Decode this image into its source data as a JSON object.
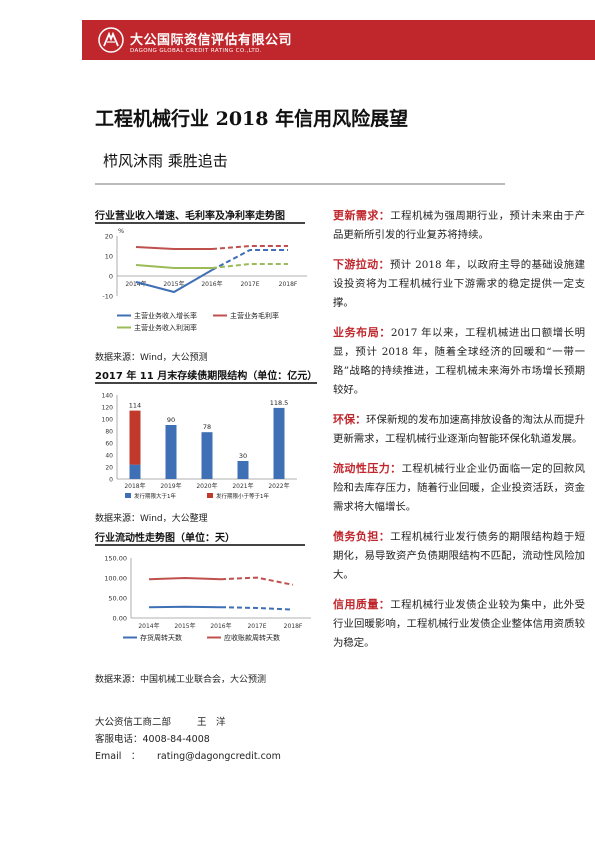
{
  "header": {
    "company": "大公国际资信评估有限公司",
    "company_en": "DAGONG GLOBAL CREDIT RATING CO.,LTD."
  },
  "title": "工程机械行业 2018 年信用风险展望",
  "subtitle": "栉风沐雨 乘胜追击",
  "charts_meta": {
    "chart1_title": "行业营业收入增速、毛利率及净利率走势图",
    "chart1_source": "数据来源：Wind，大公预测",
    "chart2_title": "2017 年 11 月末存续债期限结构（单位：亿元）",
    "chart2_source": "数据来源：Wind，大公整理",
    "chart3_title": "行业流动性走势图（单位：天）",
    "chart3_source": "数据来源：中国机械工业联合会，大公预测"
  },
  "chart_data": [
    {
      "type": "line",
      "title": "行业营业收入增速、毛利率及净利率走势图",
      "unit_label": "%",
      "categories": [
        "2014年",
        "2015年",
        "2016年",
        "2017E",
        "2018F"
      ],
      "yticks": [
        "20",
        "10",
        "0",
        "-10"
      ],
      "ylim": [
        -10,
        20
      ],
      "series": [
        {
          "name": "主营业务收入增长率",
          "values": [
            -3,
            -8,
            3,
            13,
            13
          ],
          "color": "#3f6fb4",
          "forecast_from": 3
        },
        {
          "name": "主营业务毛利率",
          "values": [
            14.5,
            13.5,
            13.5,
            15,
            15
          ],
          "color": "#c0504d",
          "forecast_from": 3
        },
        {
          "name": "主营业务收入利润率",
          "values": [
            5.5,
            4,
            4,
            6,
            6
          ],
          "color": "#9bbb59",
          "forecast_from": 3
        }
      ],
      "legend": "bottom"
    },
    {
      "type": "bar",
      "title": "2017 年 11 月末存续债期限结构（单位：亿元）",
      "categories": [
        "2018年",
        "2019年",
        "2020年",
        "2021年",
        "2022年"
      ],
      "yticks": [
        "140",
        "120",
        "100",
        "80",
        "60",
        "40",
        "20",
        "0"
      ],
      "ylim": [
        0,
        140
      ],
      "labels": [
        "114",
        "90",
        "78",
        "30",
        "118.5"
      ],
      "series": [
        {
          "name": "发行期限大于1年",
          "values": [
            24,
            90,
            78,
            30,
            118.5
          ],
          "color": "#3f6fb4"
        },
        {
          "name": "发行期限小于等于1年",
          "values": [
            90,
            0,
            0,
            0,
            0
          ],
          "color": "#c0392b"
        }
      ],
      "legend": "bottom"
    },
    {
      "type": "line",
      "title": "行业流动性走势图（单位：天）",
      "categories": [
        "2014年",
        "2015年",
        "2016年",
        "2017E",
        "2018F"
      ],
      "yticks": [
        "150.00",
        "100.00",
        "50.00",
        "0.00"
      ],
      "ylim": [
        0,
        150
      ],
      "series": [
        {
          "name": "存货周转天数",
          "values": [
            27,
            28,
            27,
            25,
            21
          ],
          "color": "#3f6fb4",
          "forecast_from": 3
        },
        {
          "name": "应收账款周转天数",
          "values": [
            97,
            100,
            97,
            101,
            83
          ],
          "color": "#c0504d",
          "forecast_from": 3
        }
      ],
      "legend": "bottom"
    }
  ],
  "paragraphs": [
    {
      "label": "更新需求：",
      "text": "工程机械为强周期行业，预计未来由于产品更新所引发的行业复苏将持续。"
    },
    {
      "label": "下游拉动：",
      "text": "预计 2018 年，以政府主导的基础设施建设投资将为工程机械行业下游需求的稳定提供一定支撑。"
    },
    {
      "label": "业务布局：",
      "text": "2017 年以来，工程机械进出口额增长明显，预计 2018 年，随着全球经济的回暖和“一带一路”战略的持续推进，工程机械未来海外市场增长预期较好。"
    },
    {
      "label": "环保：",
      "text": "环保新规的发布加速高排放设备的淘汰从而提升更新需求，工程机械行业逐渐向智能环保化轨道发展。"
    },
    {
      "label": "流动性压力：",
      "text": "工程机械行业企业仍面临一定的回款风险和去库存压力，随着行业回暖，企业投资活跃，资金需求将大幅增长。"
    },
    {
      "label": "债务负担：",
      "text": "工程机械行业发行债务的期限结构趋于短期化，易导致资产负债期限结构不匹配，流动性风险加大。"
    },
    {
      "label": "信用质量：",
      "text": "工程机械行业发债企业较为集中，此外受行业回暖影响，工程机械行业发债企业整体信用资质较为稳定。"
    }
  ],
  "footer": {
    "dept": "大公资信工商二部",
    "analyst": "王　洋",
    "phone_label": "客服电话：",
    "phone": "4008-84-4008",
    "email_label": "Email　：",
    "email": "rating@dagongcredit.com"
  }
}
